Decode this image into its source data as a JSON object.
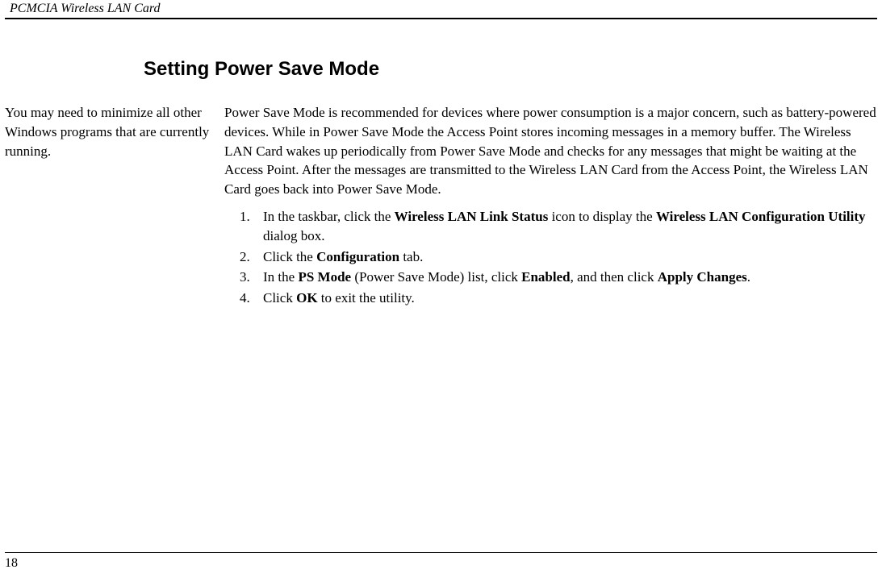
{
  "header": {
    "title": "PCMCIA Wireless LAN Card"
  },
  "section_title": "Setting Power Save Mode",
  "sidebar_note": "You may need to minimize all other Windows programs that are currently running.",
  "intro_paragraph": "Power Save Mode is recommended for devices where power consumption is a major concern, such as battery-powered devices. While in Power Save Mode the Access Point stores incoming messages in a memory buffer. The Wireless LAN Card wakes up periodically from Power Save Mode and checks for any messages that might be waiting at the Access Point. After the messages are transmitted to the Wireless LAN Card from the Access Point, the Wireless LAN Card goes back into Power Save Mode.",
  "steps": {
    "s1": {
      "t1": "In the taskbar, click the ",
      "b1": "Wireless LAN Link Status",
      "t2": " icon to display the ",
      "b2": "Wireless LAN Configuration Utility",
      "t3": " dialog box."
    },
    "s2": {
      "t1": "Click the ",
      "b1": "Configuration",
      "t2": " tab."
    },
    "s3": {
      "t1": "In the ",
      "b1": "PS Mode",
      "t2": " (Power Save Mode) list, click ",
      "b2": "Enabled",
      "t3": ", and then click ",
      "b3": "Apply Changes",
      "t4": "."
    },
    "s4": {
      "t1": "Click ",
      "b1": "OK",
      "t2": " to exit the utility."
    }
  },
  "page_number": "18",
  "colors": {
    "text": "#000000",
    "background": "#ffffff",
    "rule": "#000000"
  },
  "typography": {
    "body_font": "Times New Roman",
    "heading_font": "Arial",
    "body_size_pt": 13,
    "heading_size_pt": 18
  }
}
